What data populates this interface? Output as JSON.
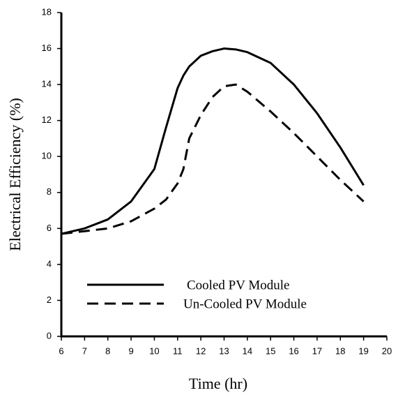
{
  "chart_data": {
    "type": "line",
    "xlabel": "Time (hr)",
    "ylabel": "Electrical Efficiency (%)",
    "x": [
      6,
      7,
      8,
      9,
      10,
      10.5,
      11,
      11.25,
      11.5,
      12,
      12.5,
      13,
      13.5,
      14,
      15,
      16,
      17,
      18,
      19
    ],
    "series": [
      {
        "name": "Cooled PV Module",
        "color": "#000000",
        "line_style": "solid",
        "values": [
          5.7,
          6.0,
          6.5,
          7.5,
          9.3,
          11.6,
          13.8,
          14.5,
          15.0,
          15.6,
          15.85,
          16.0,
          15.95,
          15.8,
          15.2,
          14.0,
          12.4,
          10.5,
          8.4
        ]
      },
      {
        "name": "Un-Cooled PV Module",
        "color": "#000000",
        "line_style": "dashed",
        "values": [
          5.7,
          5.85,
          6.0,
          6.4,
          7.1,
          7.6,
          8.5,
          9.3,
          11.0,
          12.3,
          13.3,
          13.9,
          14.0,
          13.6,
          12.5,
          11.3,
          10.0,
          8.7,
          7.5
        ]
      }
    ],
    "xlim": [
      6,
      20
    ],
    "xticks": [
      6,
      7,
      8,
      9,
      10,
      11,
      12,
      13,
      14,
      15,
      16,
      17,
      18,
      19,
      20
    ],
    "ylim": [
      0,
      18
    ],
    "yticks": [
      0,
      2,
      4,
      6,
      8,
      10,
      12,
      14,
      16,
      18
    ],
    "grid": false,
    "legend": "lower left"
  }
}
